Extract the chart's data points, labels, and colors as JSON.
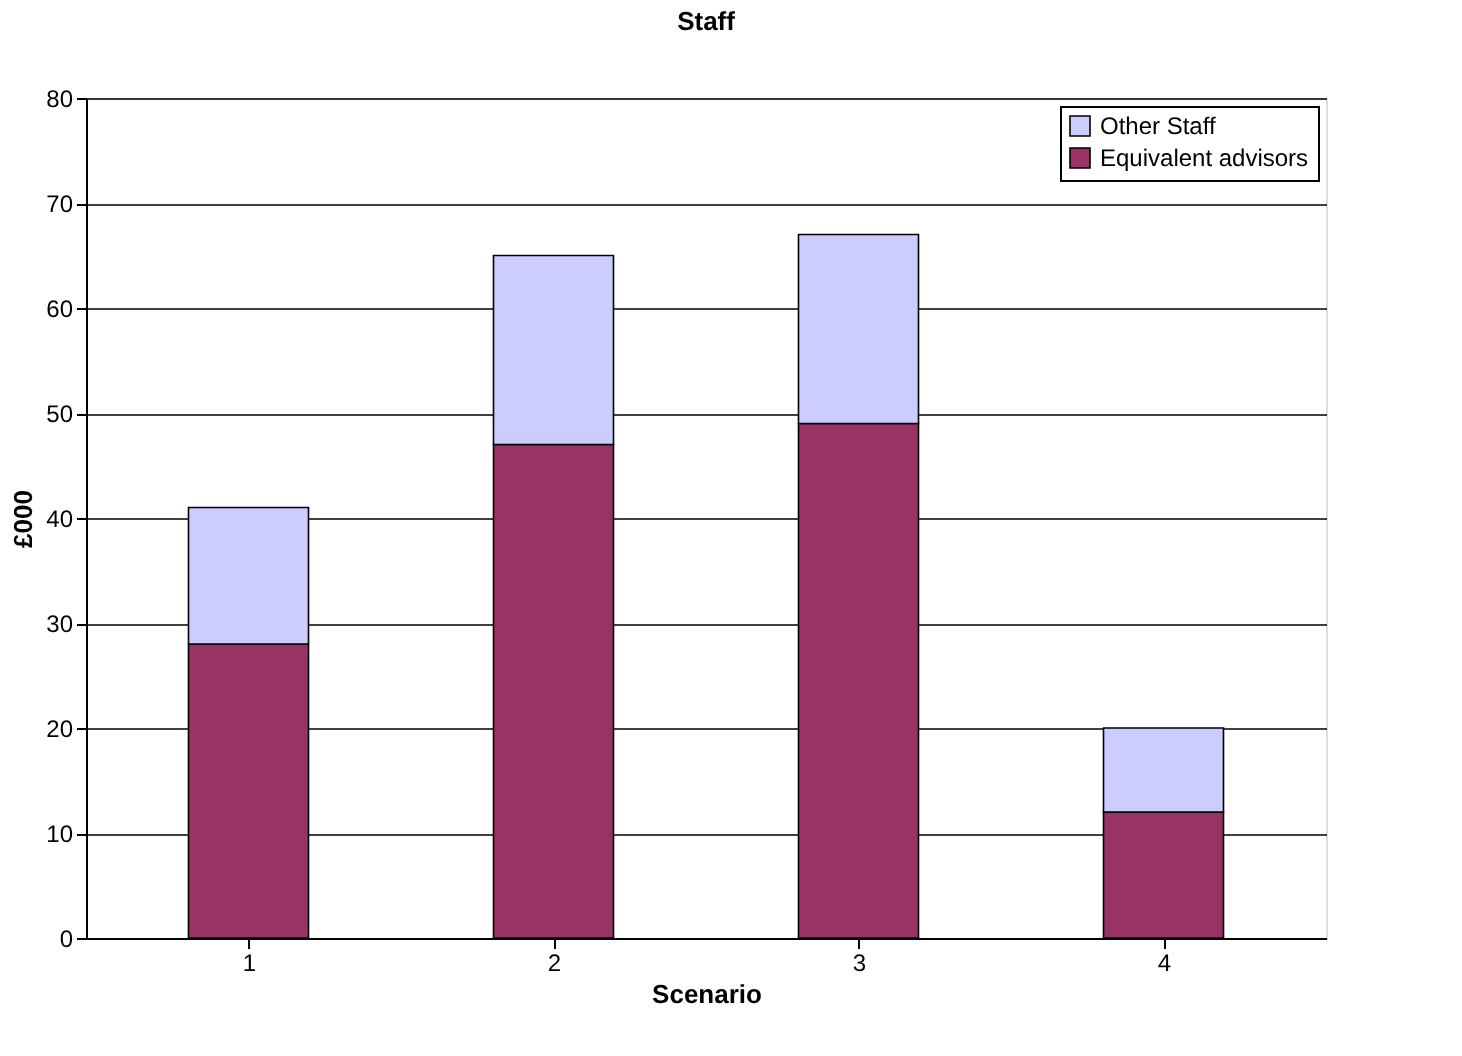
{
  "chart_data": {
    "type": "bar",
    "title": "Staff",
    "xlabel": "Scenario",
    "ylabel": "£000",
    "categories": [
      "1",
      "2",
      "3",
      "4"
    ],
    "series": [
      {
        "name": "Equivalent advisors",
        "color": "#993366",
        "values": [
          28,
          47,
          49,
          12
        ]
      },
      {
        "name": "Other Staff",
        "color": "#ccccff",
        "values": [
          13,
          18,
          18,
          8
        ]
      }
    ],
    "stacked": true,
    "ylim": [
      0,
      80
    ],
    "yticks": [
      0,
      10,
      20,
      30,
      40,
      50,
      60,
      70,
      80
    ],
    "grid": "y",
    "legend": "top right"
  }
}
